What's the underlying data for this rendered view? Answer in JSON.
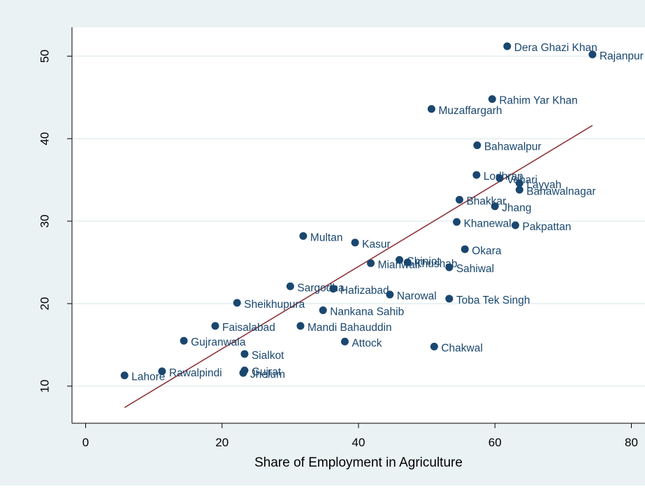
{
  "chart_data": {
    "type": "scatter",
    "title": "",
    "xlabel": "Share of Employment in Agriculture",
    "ylabel": "",
    "xlim": [
      -2,
      82
    ],
    "ylim": [
      5.5,
      53.5
    ],
    "x_ticks": [
      0,
      20,
      40,
      60,
      80
    ],
    "y_ticks": [
      10,
      20,
      30,
      40,
      50
    ],
    "x_tick_labels": [
      "0",
      "20",
      "40",
      "60",
      "80"
    ],
    "y_tick_labels": [
      "10",
      "20",
      "30",
      "40",
      "50"
    ],
    "grid": "horizontal",
    "legend": "none",
    "colors": {
      "outer_background": "#eaf2f3",
      "plot_background": "#ffffff",
      "gridline": "#eaf2f3",
      "marker": "#1a476f",
      "label_text": "#1a476f",
      "fit_line": "#90353b",
      "axis": "#000000"
    },
    "points": [
      {
        "label": "Dera Ghazi Khan",
        "x": 61.8,
        "y": 51.2,
        "pos": "right"
      },
      {
        "label": "Rajanpur",
        "x": 74.3,
        "y": 50.2,
        "pos": "right"
      },
      {
        "label": "Rahim Yar Khan",
        "x": 59.6,
        "y": 44.8,
        "pos": "right"
      },
      {
        "label": "Muzaffargarh",
        "x": 50.7,
        "y": 43.6,
        "pos": "right"
      },
      {
        "label": "Bahawalpur",
        "x": 57.4,
        "y": 39.2,
        "pos": "right"
      },
      {
        "label": "Lodhran",
        "x": 57.3,
        "y": 35.6,
        "pos": "right"
      },
      {
        "label": "Vehari",
        "x": 60.7,
        "y": 35.2,
        "pos": "right"
      },
      {
        "label": "Layyah",
        "x": 63.6,
        "y": 34.6,
        "pos": "right"
      },
      {
        "label": "Bahawalnagar",
        "x": 63.6,
        "y": 33.8,
        "pos": "right"
      },
      {
        "label": "Bhakkar",
        "x": 54.8,
        "y": 32.6,
        "pos": "right"
      },
      {
        "label": "Jhang",
        "x": 60.0,
        "y": 31.8,
        "pos": "right"
      },
      {
        "label": "Khanewal",
        "x": 54.4,
        "y": 29.9,
        "pos": "right"
      },
      {
        "label": "Pakpattan",
        "x": 63.0,
        "y": 29.5,
        "pos": "right"
      },
      {
        "label": "Multan",
        "x": 31.9,
        "y": 28.2,
        "pos": "right"
      },
      {
        "label": "Kasur",
        "x": 39.5,
        "y": 27.4,
        "pos": "right"
      },
      {
        "label": "Okara",
        "x": 55.6,
        "y": 26.6,
        "pos": "right"
      },
      {
        "label": "Chiniot",
        "x": 46.0,
        "y": 25.3,
        "pos": "right"
      },
      {
        "label": "Khushab",
        "x": 47.2,
        "y": 25.0,
        "pos": "right"
      },
      {
        "label": "Mianwali",
        "x": 41.8,
        "y": 24.9,
        "pos": "right"
      },
      {
        "label": "Sahiwal",
        "x": 53.3,
        "y": 24.4,
        "pos": "right"
      },
      {
        "label": "Sargodha",
        "x": 30.0,
        "y": 22.1,
        "pos": "right"
      },
      {
        "label": "Hafizabad",
        "x": 36.3,
        "y": 21.8,
        "pos": "right"
      },
      {
        "label": "Narowal",
        "x": 44.6,
        "y": 21.1,
        "pos": "right"
      },
      {
        "label": "Toba Tek Singh",
        "x": 53.3,
        "y": 20.6,
        "pos": "right"
      },
      {
        "label": "Sheikhupura",
        "x": 22.2,
        "y": 20.1,
        "pos": "right"
      },
      {
        "label": "Nankana Sahib",
        "x": 34.8,
        "y": 19.2,
        "pos": "right"
      },
      {
        "label": "Faisalabad",
        "x": 19.0,
        "y": 17.3,
        "pos": "right"
      },
      {
        "label": "Mandi Bahauddin",
        "x": 31.5,
        "y": 17.3,
        "pos": "right"
      },
      {
        "label": "Gujranwala",
        "x": 14.4,
        "y": 15.5,
        "pos": "right"
      },
      {
        "label": "Attock",
        "x": 38.0,
        "y": 15.4,
        "pos": "right"
      },
      {
        "label": "Chakwal",
        "x": 51.1,
        "y": 14.8,
        "pos": "right"
      },
      {
        "label": "Sialkot",
        "x": 23.3,
        "y": 13.9,
        "pos": "right"
      },
      {
        "label": "Gujrat",
        "x": 23.3,
        "y": 11.9,
        "pos": "right"
      },
      {
        "label": "Jhelum",
        "x": 23.1,
        "y": 11.6,
        "pos": "right"
      },
      {
        "label": "Rawalpindi",
        "x": 11.2,
        "y": 11.8,
        "pos": "right"
      },
      {
        "label": "Lahore",
        "x": 5.7,
        "y": 11.3,
        "pos": "right"
      }
    ],
    "fit_line": {
      "x": [
        5.7,
        74.3
      ],
      "y": [
        7.4,
        41.6
      ]
    }
  }
}
